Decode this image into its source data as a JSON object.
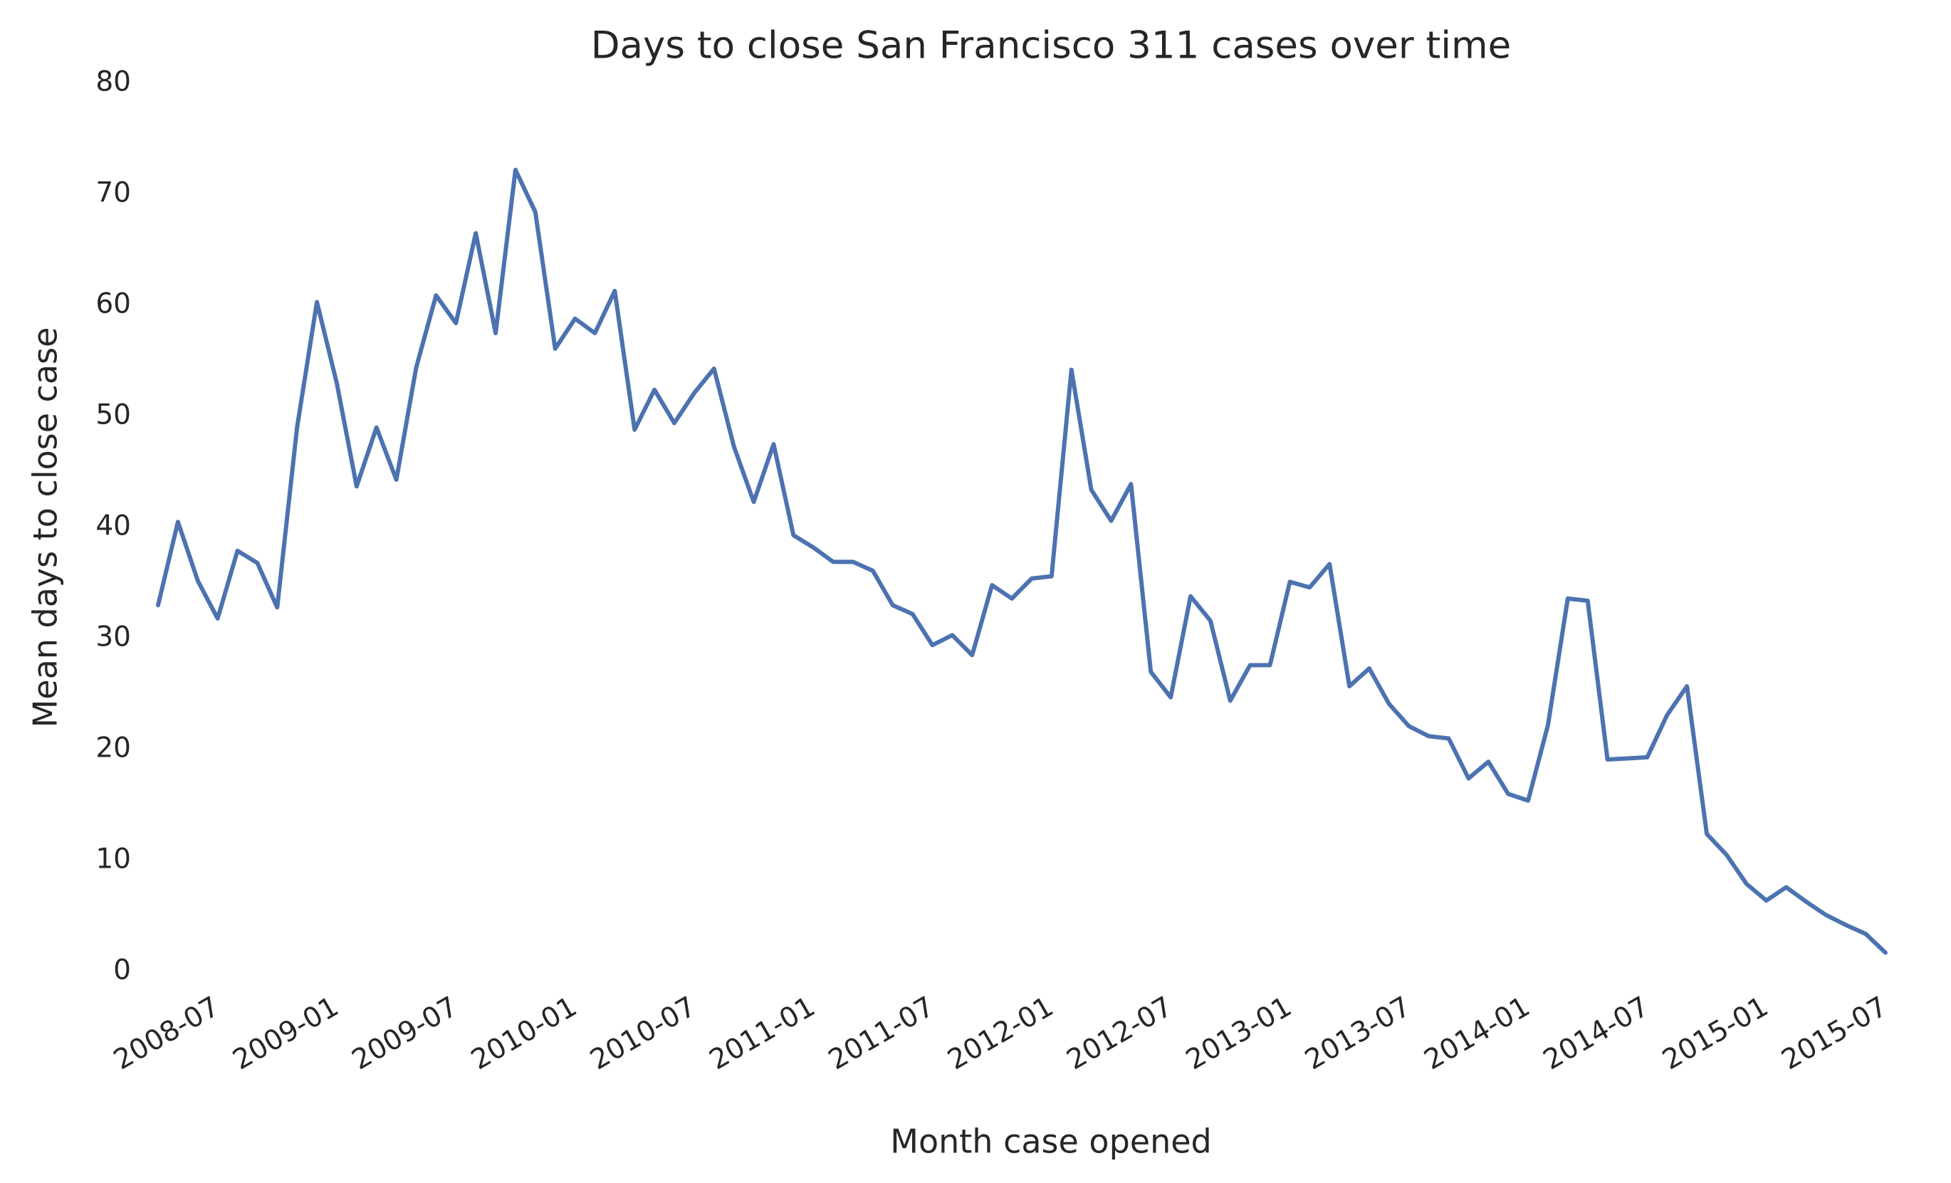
{
  "chart_data": {
    "type": "line",
    "title": "Days to close San Francisco 311 cases over time",
    "xlabel": "Month case opened",
    "ylabel": "Mean days to close case",
    "color": "#4c72b0",
    "grid": false,
    "x": [
      "2008-04",
      "2008-05",
      "2008-06",
      "2008-07",
      "2008-08",
      "2008-09",
      "2008-10",
      "2008-11",
      "2008-12",
      "2009-01",
      "2009-02",
      "2009-03",
      "2009-04",
      "2009-05",
      "2009-06",
      "2009-07",
      "2009-08",
      "2009-09",
      "2009-10",
      "2009-11",
      "2009-12",
      "2010-01",
      "2010-02",
      "2010-03",
      "2010-04",
      "2010-05",
      "2010-06",
      "2010-07",
      "2010-08",
      "2010-09",
      "2010-10",
      "2010-11",
      "2010-12",
      "2011-01",
      "2011-02",
      "2011-03",
      "2011-04",
      "2011-05",
      "2011-06",
      "2011-07",
      "2011-08",
      "2011-09",
      "2011-10",
      "2011-11",
      "2011-12",
      "2012-01",
      "2012-02",
      "2012-03",
      "2012-04",
      "2012-05",
      "2012-06",
      "2012-07",
      "2012-08",
      "2012-09",
      "2012-10",
      "2012-11",
      "2012-12",
      "2013-01",
      "2013-02",
      "2013-03",
      "2013-04",
      "2013-05",
      "2013-06",
      "2013-07",
      "2013-08",
      "2013-09",
      "2013-10",
      "2013-11",
      "2013-12",
      "2014-01",
      "2014-02",
      "2014-03",
      "2014-04",
      "2014-05",
      "2014-06",
      "2014-07",
      "2014-08",
      "2014-09",
      "2014-10",
      "2014-11",
      "2014-12",
      "2015-01",
      "2015-02",
      "2015-03",
      "2015-04",
      "2015-05",
      "2015-06",
      "2015-07"
    ],
    "values": [
      33.0,
      40.5,
      35.2,
      31.8,
      37.9,
      36.8,
      32.8,
      49.0,
      60.3,
      53.0,
      43.7,
      49.0,
      44.3,
      54.4,
      60.9,
      58.4,
      66.5,
      57.5,
      72.2,
      68.4,
      56.1,
      58.8,
      57.5,
      61.3,
      48.8,
      52.4,
      49.4,
      52.1,
      54.3,
      47.3,
      42.3,
      47.5,
      39.3,
      38.2,
      36.9,
      36.9,
      36.1,
      33.0,
      32.2,
      29.4,
      30.3,
      28.5,
      34.8,
      33.6,
      35.4,
      35.6,
      54.2,
      43.4,
      40.6,
      43.9,
      27.0,
      24.7,
      33.8,
      31.6,
      24.4,
      27.6,
      27.6,
      35.1,
      34.6,
      36.7,
      25.7,
      27.3,
      24.1,
      22.1,
      21.2,
      21.0,
      17.4,
      18.9,
      16.0,
      15.4,
      22.2,
      33.6,
      33.4,
      19.1,
      19.2,
      19.3,
      23.1,
      25.7,
      12.4,
      10.5,
      7.9,
      6.4,
      7.6,
      6.3,
      5.1,
      4.2,
      3.4,
      1.7
    ],
    "xlim": [
      "2008-04",
      "2015-07"
    ],
    "xticks": [
      "2008-07",
      "2009-01",
      "2009-07",
      "2010-01",
      "2010-07",
      "2011-01",
      "2011-07",
      "2012-01",
      "2012-07",
      "2013-01",
      "2013-07",
      "2014-01",
      "2014-07",
      "2015-01",
      "2015-07"
    ],
    "ylim": [
      0,
      80
    ],
    "yticks": [
      0,
      10,
      20,
      30,
      40,
      50,
      60,
      70,
      80
    ]
  }
}
